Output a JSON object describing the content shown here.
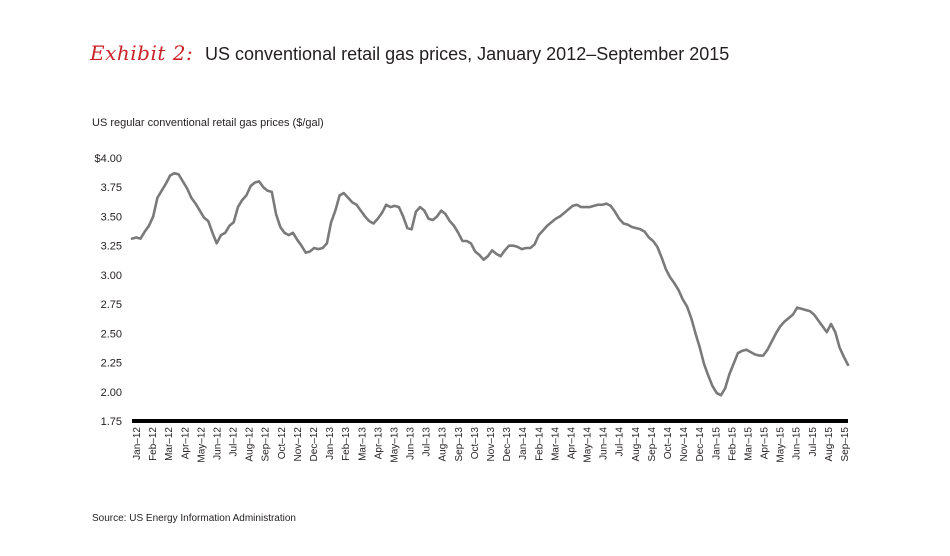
{
  "header": {
    "exhibit_label": "Exhibit 2:",
    "title": "US conventional retail gas prices, January 2012–September 2015"
  },
  "source": "Source: US Energy Information Administration",
  "colors": {
    "accent": "#cc2229",
    "line": "#7a7a7a",
    "axis": "#000000",
    "text": "#231f20"
  },
  "chart_data": {
    "type": "line",
    "title": "US conventional retail gas prices, January 2012–September 2015",
    "ylabel": "US regular conventional retail gas prices ($/gal)",
    "xlabel": "",
    "ylim": [
      1.75,
      4.0
    ],
    "grid": false,
    "y_ticks": [
      "$4.00",
      "3.75",
      "3.50",
      "3.25",
      "3.00",
      "2.75",
      "2.50",
      "2.25",
      "2.00",
      "1.75"
    ],
    "y_tick_values": [
      4.0,
      3.75,
      3.5,
      3.25,
      3.0,
      2.75,
      2.5,
      2.25,
      2.0,
      1.75
    ],
    "x_ticks": [
      "Jan–12",
      "Feb–12",
      "Mar–12",
      "Apr–12",
      "May–12",
      "Jun–12",
      "Jul–12",
      "Aug–12",
      "Sep–12",
      "Oct–12",
      "Nov–12",
      "Dec–12",
      "Jan–13",
      "Feb–13",
      "Mar–13",
      "Apr–13",
      "May–13",
      "Jun–13",
      "Jul–13",
      "Aug–13",
      "Sep–13",
      "Oct–13",
      "Nov–13",
      "Dec–13",
      "Jan–14",
      "Feb–14",
      "Mar–14",
      "Apr–14",
      "May–14",
      "Jun–14",
      "Jul–14",
      "Aug–14",
      "Sep–14",
      "Oct–14",
      "Nov–14",
      "Dec–14",
      "Jan–15",
      "Feb–15",
      "Mar–15",
      "Apr–15",
      "May–15",
      "Jun–15",
      "Jul–15",
      "Aug–15",
      "Sep–15"
    ],
    "series": [
      {
        "values": [
          3.31,
          3.32,
          3.31,
          3.37,
          3.42,
          3.5,
          3.66,
          3.72,
          3.78,
          3.85,
          3.87,
          3.86,
          3.8,
          3.74,
          3.66,
          3.61,
          3.55,
          3.49,
          3.46,
          3.36,
          3.27,
          3.34,
          3.36,
          3.42,
          3.45,
          3.58,
          3.64,
          3.68,
          3.76,
          3.79,
          3.8,
          3.75,
          3.72,
          3.71,
          3.52,
          3.41,
          3.36,
          3.34,
          3.36,
          3.3,
          3.25,
          3.19,
          3.2,
          3.23,
          3.22,
          3.23,
          3.27,
          3.45,
          3.55,
          3.68,
          3.7,
          3.66,
          3.62,
          3.6,
          3.55,
          3.5,
          3.46,
          3.44,
          3.48,
          3.53,
          3.6,
          3.58,
          3.59,
          3.58,
          3.5,
          3.4,
          3.39,
          3.54,
          3.58,
          3.55,
          3.48,
          3.47,
          3.5,
          3.55,
          3.52,
          3.46,
          3.42,
          3.36,
          3.29,
          3.29,
          3.27,
          3.2,
          3.17,
          3.13,
          3.16,
          3.21,
          3.18,
          3.16,
          3.21,
          3.25,
          3.25,
          3.24,
          3.22,
          3.23,
          3.23,
          3.26,
          3.34,
          3.38,
          3.42,
          3.45,
          3.48,
          3.5,
          3.53,
          3.56,
          3.59,
          3.6,
          3.58,
          3.58,
          3.58,
          3.59,
          3.6,
          3.6,
          3.61,
          3.59,
          3.54,
          3.48,
          3.44,
          3.43,
          3.41,
          3.4,
          3.39,
          3.37,
          3.32,
          3.29,
          3.24,
          3.15,
          3.05,
          2.98,
          2.93,
          2.87,
          2.79,
          2.73,
          2.63,
          2.5,
          2.38,
          2.24,
          2.14,
          2.05,
          1.99,
          1.97,
          2.03,
          2.15,
          2.24,
          2.33,
          2.35,
          2.36,
          2.34,
          2.32,
          2.31,
          2.31,
          2.36,
          2.43,
          2.5,
          2.56,
          2.6,
          2.63,
          2.66,
          2.72,
          2.71,
          2.7,
          2.69,
          2.66,
          2.61,
          2.56,
          2.51,
          2.58,
          2.51,
          2.38,
          2.3,
          2.23
        ]
      }
    ]
  }
}
